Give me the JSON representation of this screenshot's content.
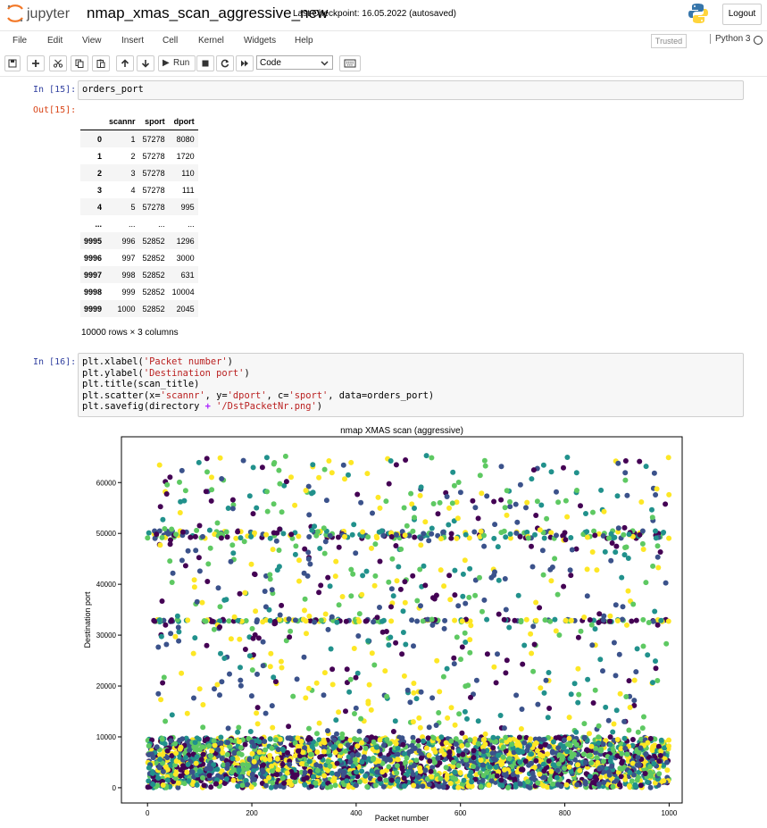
{
  "header": {
    "logo_text": "jupyter",
    "notebook_name": "nmap_xmas_scan_aggressive_new",
    "checkpoint": "Last Checkpoint: 16.05.2022  (autosaved)",
    "logout_label": "Logout"
  },
  "menu": {
    "items": [
      "File",
      "Edit",
      "View",
      "Insert",
      "Cell",
      "Kernel",
      "Widgets",
      "Help"
    ],
    "trusted_label": "Trusted",
    "kernel_label": "Python 3"
  },
  "toolbar": {
    "run_label": "Run",
    "cell_type": "Code"
  },
  "cells": {
    "cell15": {
      "in_prompt": "In [15]:",
      "code": "orders_port",
      "out_prompt": "Out[15]:"
    },
    "dataframe": {
      "columns": [
        "scannr",
        "sport",
        "dport"
      ],
      "rows": [
        [
          "0",
          "1",
          "57278",
          "8080"
        ],
        [
          "1",
          "2",
          "57278",
          "1720"
        ],
        [
          "2",
          "3",
          "57278",
          "110"
        ],
        [
          "3",
          "4",
          "57278",
          "111"
        ],
        [
          "4",
          "5",
          "57278",
          "995"
        ],
        [
          "...",
          "...",
          "...",
          "..."
        ],
        [
          "9995",
          "996",
          "52852",
          "1296"
        ],
        [
          "9996",
          "997",
          "52852",
          "3000"
        ],
        [
          "9997",
          "998",
          "52852",
          "631"
        ],
        [
          "9998",
          "999",
          "52852",
          "10004"
        ],
        [
          "9999",
          "1000",
          "52852",
          "2045"
        ]
      ],
      "shape_text": "10000 rows × 3 columns"
    },
    "cell16": {
      "in_prompt": "In [16]:",
      "lines": [
        [
          "plt.xlabel(",
          "'Packet number'",
          ")"
        ],
        [
          "plt.ylabel(",
          "'Destination port'",
          ")"
        ],
        [
          "plt.title(scan_title)",
          "",
          ""
        ],
        [
          "plt.scatter(x=",
          "'scannr'",
          ", y=",
          "'dport'",
          ", c=",
          "'sport'",
          ", data=orders_port)"
        ],
        [
          "plt.savefig(directory ",
          "+",
          " ",
          "'/DstPacketNr.png'",
          ")"
        ]
      ]
    }
  },
  "chart_data": {
    "type": "scatter",
    "title": "nmap XMAS scan (aggressive)",
    "xlabel": "Packet number",
    "ylabel": "Destination port",
    "xlim": [
      -50,
      1025
    ],
    "ylim": [
      -3000,
      69000
    ],
    "x_ticks": [
      0,
      200,
      400,
      600,
      800,
      1000
    ],
    "y_ticks": [
      0,
      10000,
      20000,
      30000,
      40000,
      50000,
      60000
    ],
    "colormap": [
      "#440154",
      "#3b528b",
      "#21918c",
      "#5ec962",
      "#fde725"
    ],
    "bands": [
      {
        "y_min": 0,
        "y_max": 10000,
        "density": "very dense"
      },
      {
        "y_min": 49000,
        "y_max": 50500,
        "density": "dense"
      },
      {
        "y_value": 32800,
        "density": "dense"
      },
      {
        "y_min": 10000,
        "y_max": 66000,
        "density": "sparse"
      }
    ],
    "grid": false
  }
}
